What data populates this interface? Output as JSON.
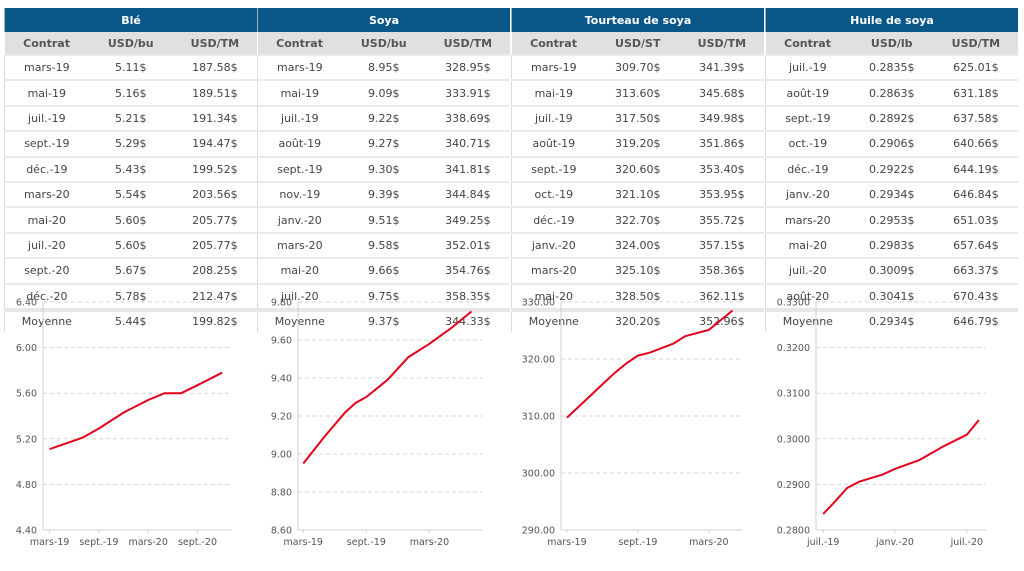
{
  "tables": [
    {
      "title": "Blé",
      "columns": [
        "Contrat",
        "USD/bu",
        "USD/TM"
      ],
      "rows": [
        [
          "mars-19",
          "5.11$",
          "187.58$"
        ],
        [
          "mai-19",
          "5.16$",
          "189.51$"
        ],
        [
          "juil.-19",
          "5.21$",
          "191.34$"
        ],
        [
          "sept.-19",
          "5.29$",
          "194.47$"
        ],
        [
          "déc.-19",
          "5.43$",
          "199.52$"
        ],
        [
          "mars-20",
          "5.54$",
          "203.56$"
        ],
        [
          "mai-20",
          "5.60$",
          "205.77$"
        ],
        [
          "juil.-20",
          "5.60$",
          "205.77$"
        ],
        [
          "sept.-20",
          "5.67$",
          "208.25$"
        ],
        [
          "déc.-20",
          "5.78$",
          "212.47$"
        ]
      ],
      "average": [
        "Moyenne",
        "5.44$",
        "199.82$"
      ]
    },
    {
      "title": "Soya",
      "columns": [
        "Contrat",
        "USD/bu",
        "USD/TM"
      ],
      "rows": [
        [
          "mars-19",
          "8.95$",
          "328.95$"
        ],
        [
          "mai-19",
          "9.09$",
          "333.91$"
        ],
        [
          "juil.-19",
          "9.22$",
          "338.69$"
        ],
        [
          "août-19",
          "9.27$",
          "340.71$"
        ],
        [
          "sept.-19",
          "9.30$",
          "341.81$"
        ],
        [
          "nov.-19",
          "9.39$",
          "344.84$"
        ],
        [
          "janv.-20",
          "9.51$",
          "349.25$"
        ],
        [
          "mars-20",
          "9.58$",
          "352.01$"
        ],
        [
          "mai-20",
          "9.66$",
          "354.76$"
        ],
        [
          "juil.-20",
          "9.75$",
          "358.35$"
        ]
      ],
      "average": [
        "Moyenne",
        "9.37$",
        "344.33$"
      ]
    },
    {
      "title": "Tourteau de soya",
      "columns": [
        "Contrat",
        "USD/ST",
        "USD/TM"
      ],
      "rows": [
        [
          "mars-19",
          "309.70$",
          "341.39$"
        ],
        [
          "mai-19",
          "313.60$",
          "345.68$"
        ],
        [
          "juil.-19",
          "317.50$",
          "349.98$"
        ],
        [
          "août-19",
          "319.20$",
          "351.86$"
        ],
        [
          "sept.-19",
          "320.60$",
          "353.40$"
        ],
        [
          "oct.-19",
          "321.10$",
          "353.95$"
        ],
        [
          "déc.-19",
          "322.70$",
          "355.72$"
        ],
        [
          "janv.-20",
          "324.00$",
          "357.15$"
        ],
        [
          "mars-20",
          "325.10$",
          "358.36$"
        ],
        [
          "mai-20",
          "328.50$",
          "362.11$"
        ]
      ],
      "average": [
        "Moyenne",
        "320.20$",
        "352.96$"
      ]
    },
    {
      "title": "Huile de soya",
      "columns": [
        "Contrat",
        "USD/lb",
        "USD/TM"
      ],
      "rows": [
        [
          "juil.-19",
          "0.2835$",
          "625.01$"
        ],
        [
          "août-19",
          "0.2863$",
          "631.18$"
        ],
        [
          "sept.-19",
          "0.2892$",
          "637.58$"
        ],
        [
          "oct.-19",
          "0.2906$",
          "640.66$"
        ],
        [
          "déc.-19",
          "0.2922$",
          "644.19$"
        ],
        [
          "janv.-20",
          "0.2934$",
          "646.84$"
        ],
        [
          "mars-20",
          "0.2953$",
          "651.03$"
        ],
        [
          "mai-20",
          "0.2983$",
          "657.64$"
        ],
        [
          "juil.-20",
          "0.3009$",
          "663.37$"
        ],
        [
          "août-20",
          "0.3041$",
          "670.43$"
        ]
      ],
      "average": [
        "Moyenne",
        "0.2934$",
        "646.79$"
      ]
    }
  ],
  "chart_data": [
    {
      "type": "line",
      "title": "",
      "series_name": "Blé USD/bu",
      "x": [
        "mars-19",
        "mai-19",
        "juil.-19",
        "sept.-19",
        "déc.-19",
        "mars-20",
        "mai-20",
        "juil.-20",
        "sept.-20",
        "déc.-20"
      ],
      "x_months": [
        0,
        2,
        4,
        6,
        9,
        12,
        14,
        16,
        18,
        21
      ],
      "values": [
        5.11,
        5.16,
        5.21,
        5.29,
        5.43,
        5.54,
        5.6,
        5.6,
        5.67,
        5.78
      ],
      "ylim": [
        4.4,
        6.4
      ],
      "yticks": [
        "4.40",
        "4.80",
        "5.20",
        "5.60",
        "6.00",
        "6.40"
      ],
      "ytick_values": [
        4.4,
        4.8,
        5.2,
        5.6,
        6.0,
        6.4
      ],
      "xticks": [
        "mars-19",
        "sept.-19",
        "mars-20",
        "sept.-20"
      ],
      "xtick_months": [
        0,
        6,
        12,
        18
      ],
      "xlim_months": [
        -0.8,
        22.2
      ],
      "grid": true,
      "color": "#e3001b"
    },
    {
      "type": "line",
      "title": "",
      "series_name": "Soya USD/bu",
      "x": [
        "mars-19",
        "mai-19",
        "juil.-19",
        "août-19",
        "sept.-19",
        "nov.-19",
        "janv.-20",
        "mars-20",
        "mai-20",
        "juil.-20"
      ],
      "x_months": [
        0,
        2,
        4,
        5,
        6,
        8,
        10,
        12,
        14,
        16
      ],
      "values": [
        8.95,
        9.09,
        9.22,
        9.27,
        9.3,
        9.39,
        9.51,
        9.58,
        9.66,
        9.75
      ],
      "ylim": [
        8.6,
        9.8
      ],
      "yticks": [
        "8.60",
        "8.80",
        "9.00",
        "9.20",
        "9.40",
        "9.60",
        "9.80"
      ],
      "ytick_values": [
        8.6,
        8.8,
        9.0,
        9.2,
        9.4,
        9.6,
        9.8
      ],
      "xticks": [
        "mars-19",
        "sept.-19",
        "mars-20"
      ],
      "xtick_months": [
        0,
        6,
        12
      ],
      "xlim_months": [
        -0.5,
        17.0
      ],
      "grid": true,
      "color": "#e3001b"
    },
    {
      "type": "line",
      "title": "",
      "series_name": "Tourteau de soya USD/ST",
      "x": [
        "mars-19",
        "mai-19",
        "juil.-19",
        "août-19",
        "sept.-19",
        "oct.-19",
        "déc.-19",
        "janv.-20",
        "mars-20",
        "mai-20"
      ],
      "x_months": [
        0,
        2,
        4,
        5,
        6,
        7,
        9,
        10,
        12,
        14
      ],
      "values": [
        309.7,
        313.6,
        317.5,
        319.2,
        320.6,
        321.1,
        322.7,
        324.0,
        325.1,
        328.5
      ],
      "ylim": [
        290.0,
        330.0
      ],
      "yticks": [
        "290.00",
        "300.00",
        "310.00",
        "320.00",
        "330.00"
      ],
      "ytick_values": [
        290,
        300,
        310,
        320,
        330
      ],
      "xticks": [
        "mars-19",
        "sept.-19",
        "mars-20"
      ],
      "xtick_months": [
        0,
        6,
        12
      ],
      "xlim_months": [
        -0.5,
        14.8
      ],
      "grid": true,
      "color": "#e3001b"
    },
    {
      "type": "line",
      "title": "",
      "series_name": "Huile de soya USD/lb",
      "x": [
        "juil.-19",
        "août-19",
        "sept.-19",
        "oct.-19",
        "déc.-19",
        "janv.-20",
        "mars-20",
        "mai-20",
        "juil.-20",
        "août-20"
      ],
      "x_months": [
        0,
        1,
        2,
        3,
        5,
        6,
        8,
        10,
        12,
        13
      ],
      "values": [
        0.2835,
        0.2863,
        0.2892,
        0.2906,
        0.2922,
        0.2934,
        0.2953,
        0.2983,
        0.3009,
        0.3041
      ],
      "ylim": [
        0.28,
        0.33
      ],
      "yticks": [
        "0.2800",
        "0.2900",
        "0.3000",
        "0.3100",
        "0.3200",
        "0.3300"
      ],
      "ytick_values": [
        0.28,
        0.29,
        0.3,
        0.31,
        0.32,
        0.33
      ],
      "xticks": [
        "juil.-19",
        "janv.-20",
        "juil.-20"
      ],
      "xtick_months": [
        0,
        6,
        12
      ],
      "xlim_months": [
        -0.6,
        13.6
      ],
      "grid": true,
      "color": "#e3001b"
    }
  ]
}
